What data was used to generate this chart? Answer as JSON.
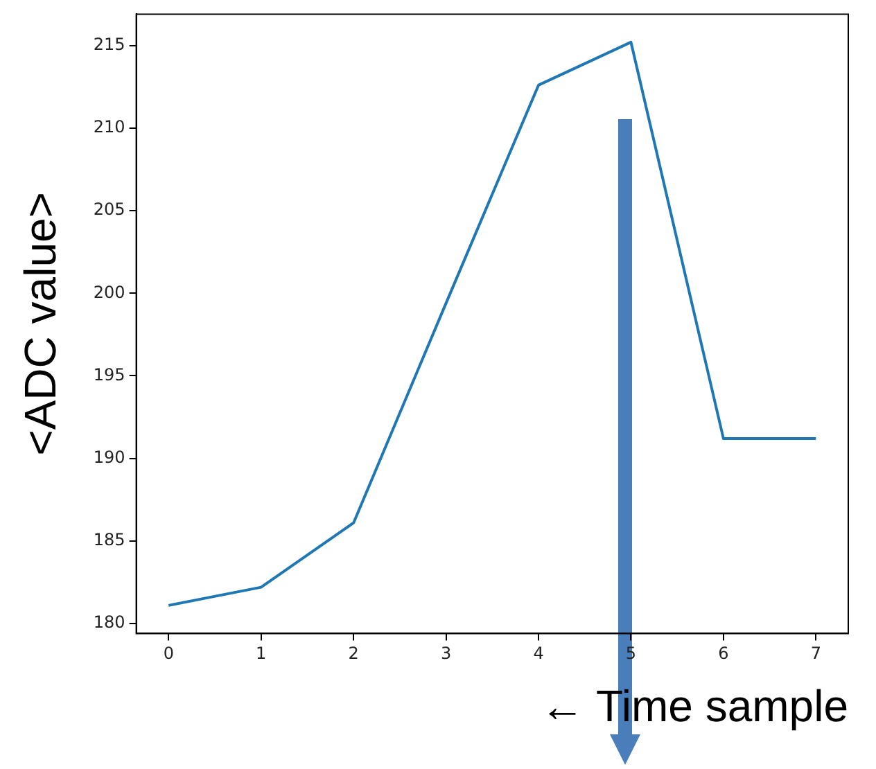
{
  "chart_data": {
    "type": "line",
    "xlabel": "← Time sample",
    "ylabel": "<ADC value>",
    "x": [
      0,
      1,
      2,
      3,
      4,
      5,
      6,
      7
    ],
    "series": [
      {
        "color": "#1f77b4",
        "values": [
          181.1,
          182.2,
          186.1,
          199.4,
          212.6,
          215.2,
          191.2,
          191.2
        ]
      }
    ],
    "xlim": [
      -0.35,
      7.35
    ],
    "ylim": [
      179.4,
      216.9
    ],
    "xticks": [
      0,
      1,
      2,
      3,
      4,
      5,
      6,
      7
    ],
    "yticks": [
      180,
      185,
      190,
      195,
      200,
      205,
      210,
      215
    ],
    "grid": false
  }
}
